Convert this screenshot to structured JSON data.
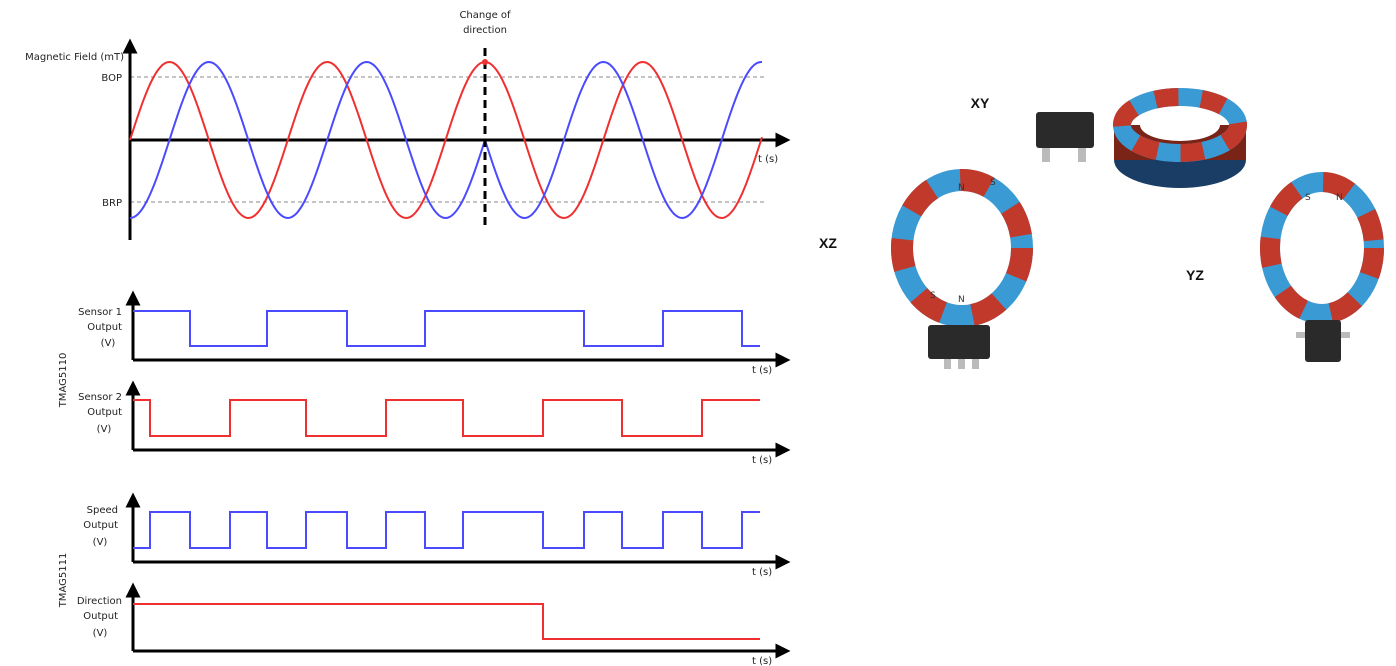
{
  "magnetic_field": {
    "annotation": [
      "Change of",
      "direction"
    ],
    "y_axis_label": "Magnetic Field (mT)",
    "bop": "BOP",
    "brp": "BRP",
    "time_label": "t (s)"
  },
  "panels": [
    {
      "label": [
        "Sensor 1",
        "Output",
        "(V)"
      ],
      "time_label": "t (s)"
    },
    {
      "label": [
        "Sensor 2",
        "Output",
        "(V)"
      ],
      "time_label": "t (s)"
    },
    {
      "label": [
        "Speed",
        "Output",
        "(V)"
      ],
      "time_label": "t (s)"
    },
    {
      "label": [
        "Direction",
        "Output",
        "(V)"
      ],
      "time_label": "t (s)"
    }
  ],
  "groups": [
    "TMAG5110",
    "TMAG5111"
  ],
  "orientations": [
    "XY",
    "XZ",
    "YZ"
  ],
  "poles": [
    "N",
    "S"
  ]
}
